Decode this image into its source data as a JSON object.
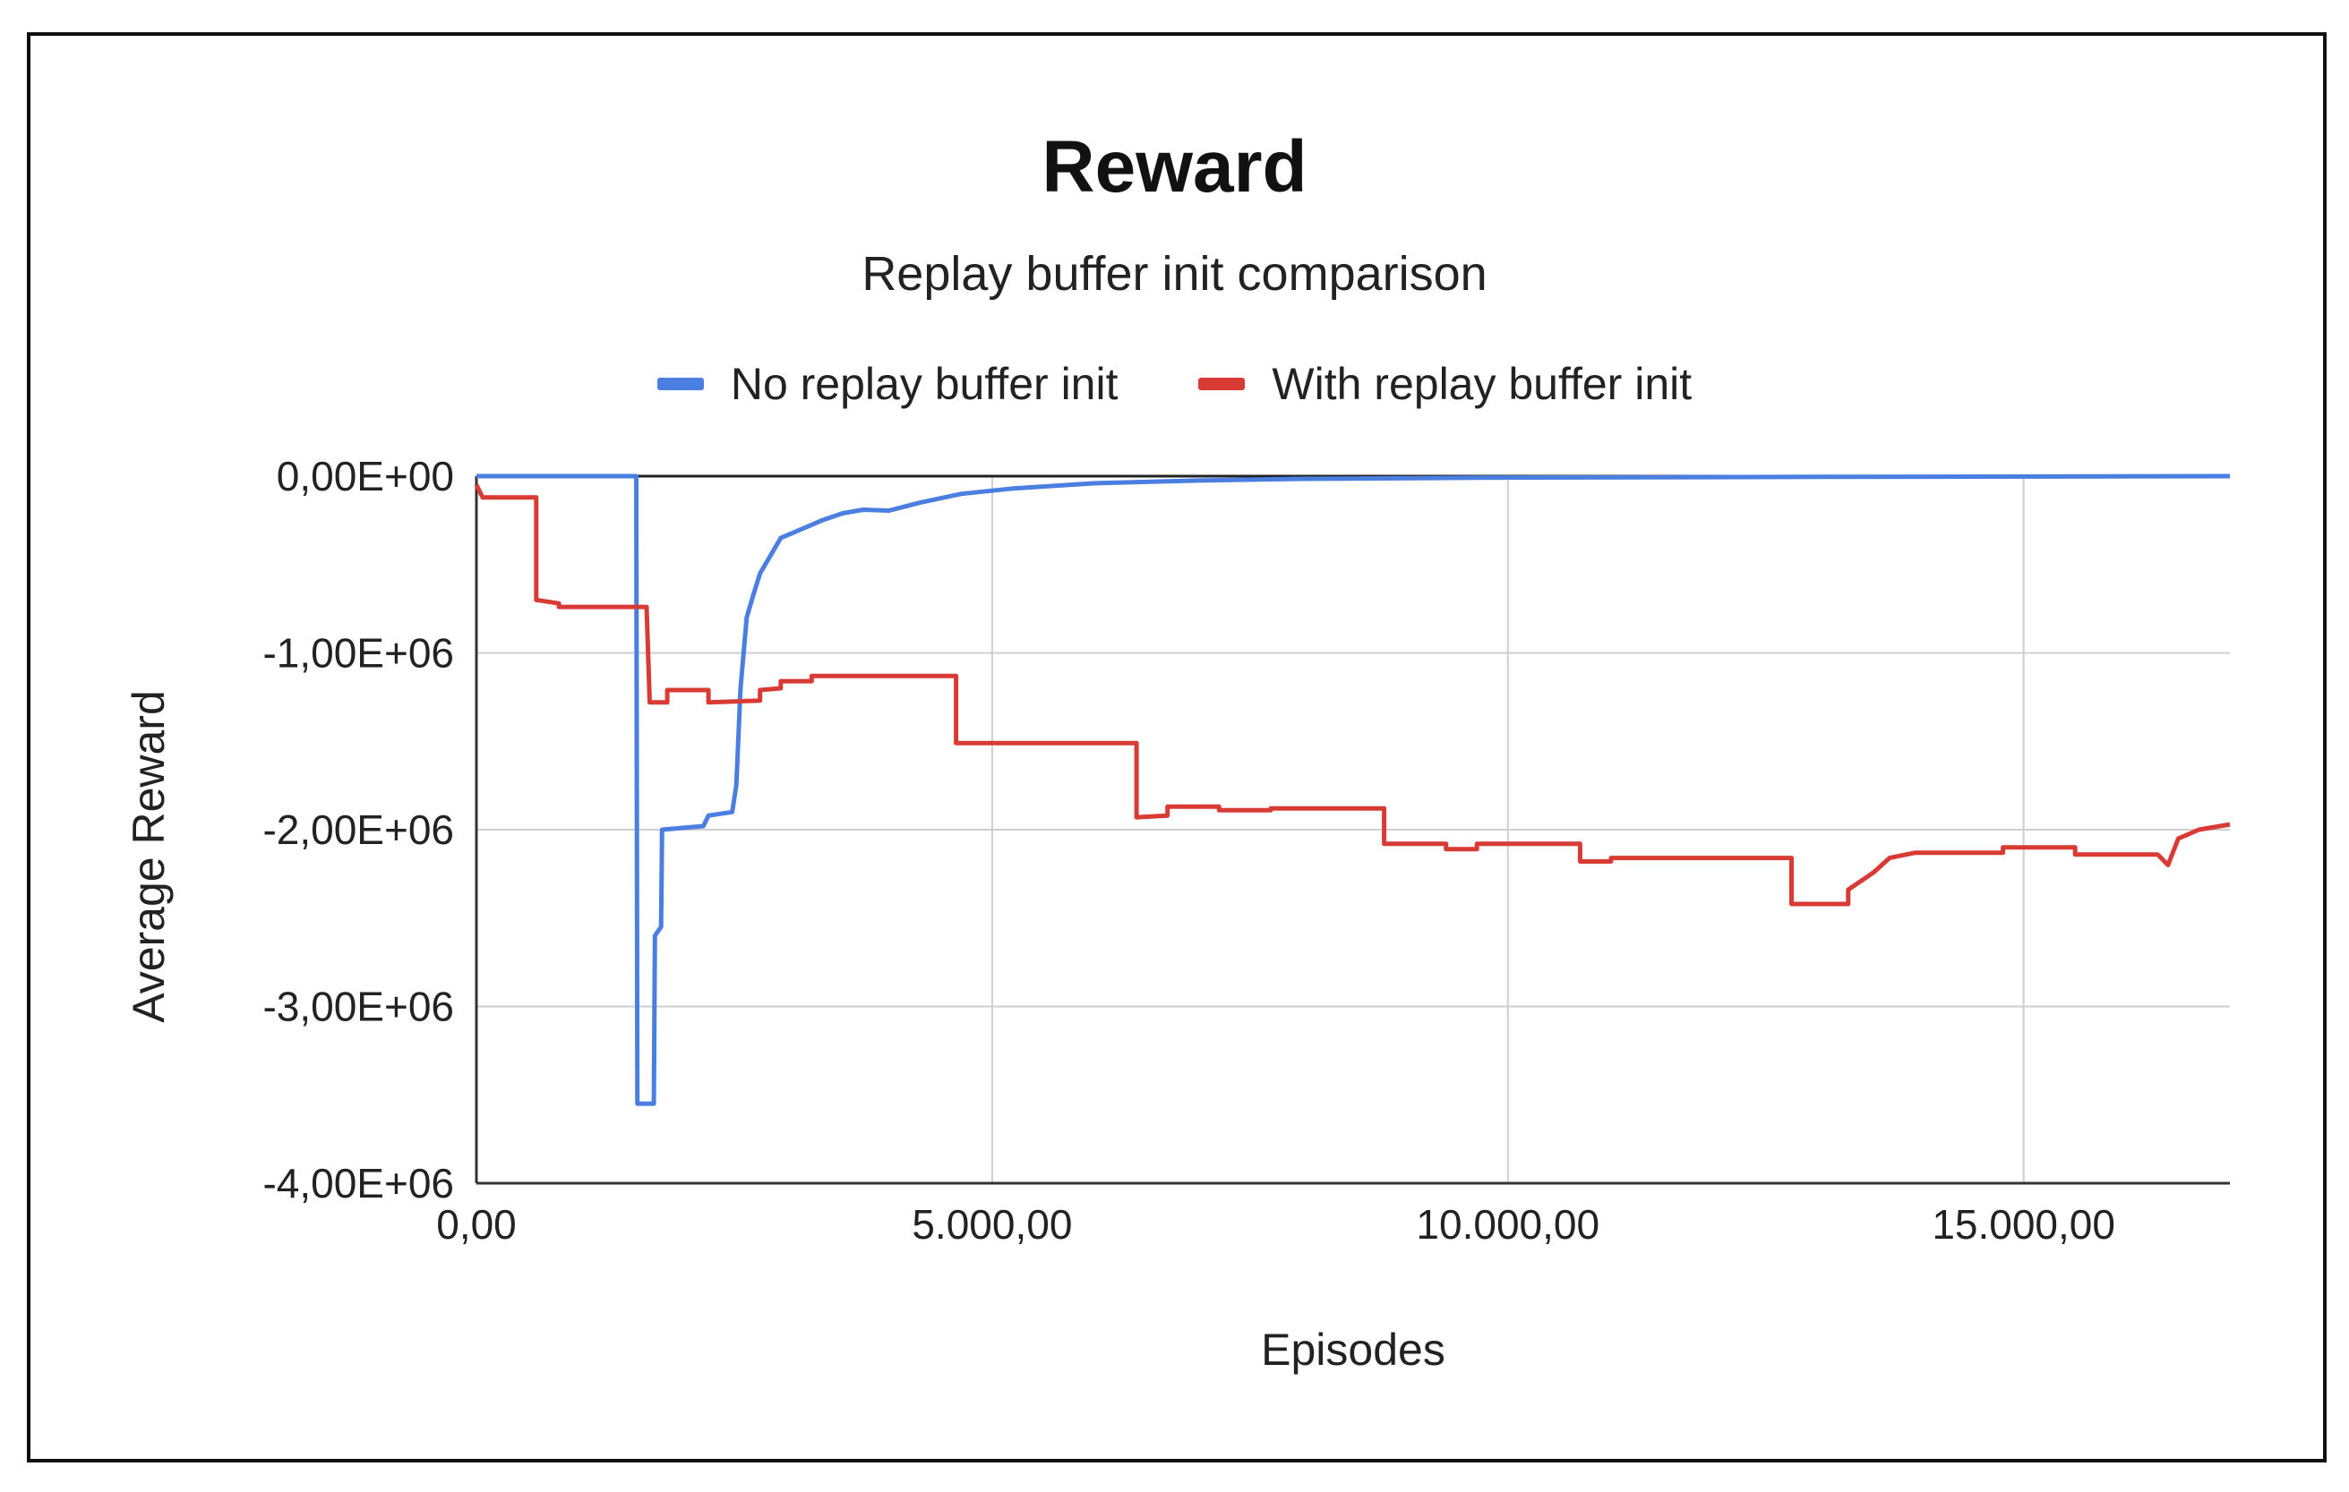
{
  "chart_data": {
    "type": "line",
    "title": "Reward",
    "subtitle": "Replay buffer init comparison",
    "xlabel": "Episodes",
    "ylabel": "Average Reward",
    "xlim": [
      0,
      17000
    ],
    "ylim": [
      -4000000,
      0
    ],
    "x_ticks": [
      0,
      5000,
      10000,
      15000
    ],
    "x_tick_labels": [
      "0,00",
      "5.000,00",
      "10.000,00",
      "15.000,00"
    ],
    "y_ticks": [
      0,
      -1000000,
      -2000000,
      -3000000,
      -4000000
    ],
    "y_tick_labels": [
      "0,00E+00",
      "-1,00E+06",
      "-2,00E+06",
      "-3,00E+06",
      "-4,00E+06"
    ],
    "grid": true,
    "legend_position": "top",
    "series": [
      {
        "name": "No replay buffer init",
        "color": "#4a7ee0",
        "points": [
          [
            0,
            0
          ],
          [
            1550,
            0
          ],
          [
            1560,
            -3550000
          ],
          [
            1720,
            -3550000
          ],
          [
            1730,
            -2600000
          ],
          [
            1790,
            -2550000
          ],
          [
            1800,
            -2000000
          ],
          [
            2200,
            -1980000
          ],
          [
            2250,
            -1920000
          ],
          [
            2480,
            -1900000
          ],
          [
            2520,
            -1750000
          ],
          [
            2560,
            -1200000
          ],
          [
            2620,
            -800000
          ],
          [
            2680,
            -680000
          ],
          [
            2750,
            -550000
          ],
          [
            2850,
            -450000
          ],
          [
            2950,
            -350000
          ],
          [
            3150,
            -300000
          ],
          [
            3350,
            -250000
          ],
          [
            3550,
            -210000
          ],
          [
            3750,
            -190000
          ],
          [
            4000,
            -195000
          ],
          [
            4300,
            -150000
          ],
          [
            4700,
            -100000
          ],
          [
            5200,
            -70000
          ],
          [
            6000,
            -40000
          ],
          [
            7000,
            -25000
          ],
          [
            8000,
            -15000
          ],
          [
            10000,
            -8000
          ],
          [
            13000,
            -4000
          ],
          [
            17000,
            0
          ]
        ]
      },
      {
        "name": "With replay buffer init",
        "color": "#d83a34",
        "points": [
          [
            0,
            -50000
          ],
          [
            60,
            -120000
          ],
          [
            580,
            -120000
          ],
          [
            580,
            -700000
          ],
          [
            800,
            -720000
          ],
          [
            800,
            -740000
          ],
          [
            1650,
            -740000
          ],
          [
            1680,
            -1280000
          ],
          [
            1850,
            -1280000
          ],
          [
            1850,
            -1210000
          ],
          [
            2250,
            -1210000
          ],
          [
            2250,
            -1280000
          ],
          [
            2750,
            -1270000
          ],
          [
            2750,
            -1210000
          ],
          [
            2950,
            -1200000
          ],
          [
            2950,
            -1160000
          ],
          [
            3250,
            -1160000
          ],
          [
            3250,
            -1130000
          ],
          [
            4650,
            -1130000
          ],
          [
            4650,
            -1510000
          ],
          [
            6400,
            -1510000
          ],
          [
            6400,
            -1930000
          ],
          [
            6700,
            -1920000
          ],
          [
            6700,
            -1870000
          ],
          [
            7200,
            -1870000
          ],
          [
            7200,
            -1890000
          ],
          [
            7700,
            -1890000
          ],
          [
            7700,
            -1880000
          ],
          [
            8800,
            -1880000
          ],
          [
            8800,
            -2080000
          ],
          [
            9400,
            -2080000
          ],
          [
            9400,
            -2110000
          ],
          [
            9700,
            -2110000
          ],
          [
            9700,
            -2080000
          ],
          [
            10700,
            -2080000
          ],
          [
            10700,
            -2180000
          ],
          [
            11000,
            -2180000
          ],
          [
            11000,
            -2160000
          ],
          [
            12750,
            -2160000
          ],
          [
            12750,
            -2420000
          ],
          [
            13300,
            -2420000
          ],
          [
            13300,
            -2340000
          ],
          [
            13550,
            -2240000
          ],
          [
            13700,
            -2160000
          ],
          [
            13950,
            -2130000
          ],
          [
            14800,
            -2130000
          ],
          [
            14800,
            -2100000
          ],
          [
            15500,
            -2100000
          ],
          [
            15500,
            -2140000
          ],
          [
            16300,
            -2140000
          ],
          [
            16400,
            -2200000
          ],
          [
            16500,
            -2050000
          ],
          [
            16700,
            -2000000
          ],
          [
            17000,
            -1970000
          ]
        ]
      }
    ]
  }
}
